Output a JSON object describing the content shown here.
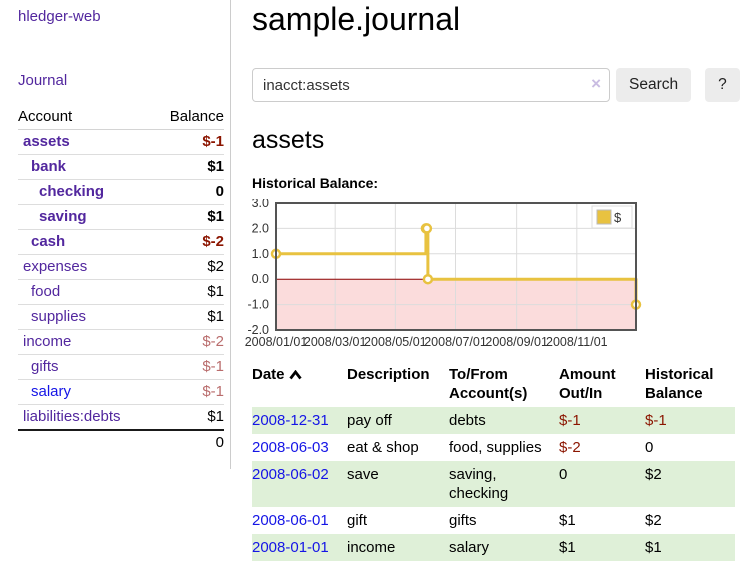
{
  "brand": "hledger-web",
  "nav": {
    "journal_label": "Journal"
  },
  "sidebar": {
    "header": {
      "account": "Account",
      "balance": "Balance"
    },
    "accounts": [
      {
        "name": "assets",
        "balance": "$-1",
        "indent": 1,
        "bold": true,
        "balance_style": "neg",
        "blue": false
      },
      {
        "name": "bank",
        "balance": "$1",
        "indent": 2,
        "bold": true,
        "balance_style": "plain",
        "blue": false
      },
      {
        "name": "checking",
        "balance": "0",
        "indent": 3,
        "bold": true,
        "balance_style": "plain",
        "blue": false
      },
      {
        "name": "saving",
        "balance": "$1",
        "indent": 3,
        "bold": true,
        "balance_style": "plain",
        "blue": false
      },
      {
        "name": "cash",
        "balance": "$-2",
        "indent": 2,
        "bold": true,
        "balance_style": "neg",
        "blue": false
      },
      {
        "name": "expenses",
        "balance": "$2",
        "indent": 1,
        "bold": false,
        "balance_style": "plain",
        "blue": false
      },
      {
        "name": "food",
        "balance": "$1",
        "indent": 2,
        "bold": false,
        "balance_style": "plain",
        "blue": false
      },
      {
        "name": "supplies",
        "balance": "$1",
        "indent": 2,
        "bold": false,
        "balance_style": "plain",
        "blue": false
      },
      {
        "name": "income",
        "balance": "$-2",
        "indent": 1,
        "bold": false,
        "balance_style": "dim",
        "blue": false
      },
      {
        "name": "gifts",
        "balance": "$-1",
        "indent": 2,
        "bold": false,
        "balance_style": "dim",
        "blue": false
      },
      {
        "name": "salary",
        "balance": "$-1",
        "indent": 2,
        "bold": false,
        "balance_style": "dim",
        "blue": true
      },
      {
        "name": "liabilities:debts",
        "balance": "$1",
        "indent": 1,
        "bold": false,
        "balance_style": "plain",
        "blue": false
      }
    ],
    "total": "0"
  },
  "header": {
    "title": "sample.journal"
  },
  "search": {
    "value": "inacct:assets",
    "clear_icon": "×",
    "button_label": "Search",
    "help_label": "?"
  },
  "account_page": {
    "title": "assets",
    "chart_label": "Historical Balance:"
  },
  "chart_data": {
    "type": "line",
    "title": "Historical Balance",
    "style": "steps",
    "legend": "$",
    "legend_position": "top-right",
    "grid": true,
    "ylim": [
      -2,
      3
    ],
    "yticks": [
      "3.0",
      "2.0",
      "1.0",
      "0.0",
      "-1.0",
      "-2.0"
    ],
    "xrange": [
      "2008-01-01",
      "2008-12-31"
    ],
    "xticks": [
      {
        "label": "2008/01/01",
        "date": "2008-01-01"
      },
      {
        "label": "2008/03/01",
        "date": "2008-03-01"
      },
      {
        "label": "2008/05/01",
        "date": "2008-05-01"
      },
      {
        "label": "2008/07/01",
        "date": "2008-07-01"
      },
      {
        "label": "2008/09/01",
        "date": "2008-09-01"
      },
      {
        "label": "2008/11/01",
        "date": "2008-11-01"
      }
    ],
    "series": [
      {
        "name": "$",
        "color": "#e8c240",
        "points": [
          {
            "date": "2008-01-01",
            "value": 1
          },
          {
            "date": "2008-06-01",
            "value": 2
          },
          {
            "date": "2008-06-02",
            "value": 2
          },
          {
            "date": "2008-06-03",
            "value": 0
          },
          {
            "date": "2008-12-31",
            "value": -1
          }
        ]
      }
    ],
    "negative_fill": "#fbdcdc",
    "zero_line_color": "#8b0000"
  },
  "register": {
    "columns": {
      "date": "Date",
      "description": "Description",
      "accounts": "To/From Account(s)",
      "amount": "Amount Out/In",
      "balance": "Historical Balance"
    },
    "rows": [
      {
        "date": "2008-12-31",
        "description": "pay off",
        "accounts": "debts",
        "amount": "$-1",
        "balance": "$-1"
      },
      {
        "date": "2008-06-03",
        "description": "eat & shop",
        "accounts": "food, supplies",
        "amount": "$-2",
        "balance": "0"
      },
      {
        "date": "2008-06-02",
        "description": "save",
        "accounts": "saving, checking",
        "amount": "0",
        "balance": "$2"
      },
      {
        "date": "2008-06-01",
        "description": "gift",
        "accounts": "gifts",
        "amount": "$1",
        "balance": "$2"
      },
      {
        "date": "2008-01-01",
        "description": "income",
        "accounts": "salary",
        "amount": "$1",
        "balance": "$1"
      }
    ]
  },
  "colors": {
    "brand_purple": "#52279e",
    "link_blue": "#1515e6",
    "negative": "#8b1500",
    "negative_dim": "#b96c6c",
    "row_stripe_green": "#dff0d8",
    "chart_line_gold": "#e8c240",
    "chart_negative_fill": "#fbdcdc",
    "chart_zero_line": "#8b0000"
  }
}
